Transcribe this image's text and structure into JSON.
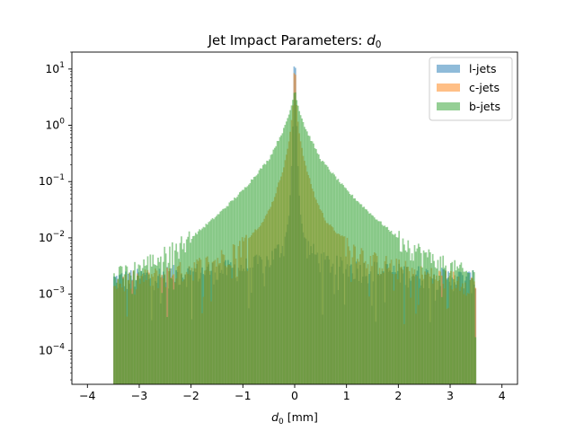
{
  "chart_data": {
    "type": "histogram",
    "title": "Jet Impact Parameters: d0",
    "title_plain": "Jet Impact Parameters: ",
    "title_math": "d",
    "title_math_sub": "0",
    "xlabel_math": "d",
    "xlabel_math_sub": "0",
    "xlabel_rest": " [mm]",
    "xlim": [
      -4.3,
      4.3
    ],
    "ylim": [
      2.5e-05,
      20
    ],
    "y_scale": "log",
    "x_ticks": [
      {
        "v": -4,
        "label": "−4"
      },
      {
        "v": -3,
        "label": "−3"
      },
      {
        "v": -2,
        "label": "−2"
      },
      {
        "v": -1,
        "label": "−1"
      },
      {
        "v": 0,
        "label": "0"
      },
      {
        "v": 1,
        "label": "1"
      },
      {
        "v": 2,
        "label": "2"
      },
      {
        "v": 3,
        "label": "3"
      },
      {
        "v": 4,
        "label": "4"
      }
    ],
    "y_ticks": [
      {
        "v": 0.0001,
        "base": "10",
        "exp": "−4"
      },
      {
        "v": 0.001,
        "base": "10",
        "exp": "−3"
      },
      {
        "v": 0.01,
        "base": "10",
        "exp": "−2"
      },
      {
        "v": 0.1,
        "base": "10",
        "exp": "−1"
      },
      {
        "v": 1,
        "base": "10",
        "exp": "0"
      },
      {
        "v": 10,
        "base": "10",
        "exp": "1"
      }
    ],
    "bin_range": [
      -3.5,
      3.5
    ],
    "bin_count": 280,
    "grid": false,
    "legend_position": "top-right",
    "series": [
      {
        "name": "l-jets",
        "color": "#1f77b4",
        "opacity": 0.5,
        "peak": 11.0,
        "profile": [
          [
            0.0,
            11.0
          ],
          [
            0.025,
            2.5
          ],
          [
            0.05,
            0.35
          ],
          [
            0.1,
            0.03
          ],
          [
            0.2,
            0.008
          ],
          [
            0.5,
            0.004
          ],
          [
            1.0,
            0.003
          ],
          [
            3.5,
            0.0018
          ]
        ]
      },
      {
        "name": "c-jets",
        "color": "#ff7f0e",
        "opacity": 0.5,
        "peak": 8.0,
        "profile": [
          [
            0.0,
            8.0
          ],
          [
            0.05,
            1.5
          ],
          [
            0.1,
            0.6
          ],
          [
            0.2,
            0.2
          ],
          [
            0.4,
            0.05
          ],
          [
            0.6,
            0.02
          ],
          [
            1.0,
            0.008
          ],
          [
            1.5,
            0.004
          ],
          [
            2.5,
            0.0022
          ],
          [
            3.5,
            0.0016
          ]
        ]
      },
      {
        "name": "b-jets",
        "color": "#2ca02c",
        "opacity": 0.5,
        "peak": 4.0,
        "profile": [
          [
            0.0,
            4.0
          ],
          [
            0.05,
            2.5
          ],
          [
            0.1,
            1.7
          ],
          [
            0.2,
            0.9
          ],
          [
            0.5,
            0.25
          ],
          [
            1.0,
            0.07
          ],
          [
            1.5,
            0.025
          ],
          [
            2.0,
            0.01
          ],
          [
            2.5,
            0.005
          ],
          [
            3.0,
            0.003
          ],
          [
            3.5,
            0.002
          ]
        ]
      }
    ]
  }
}
